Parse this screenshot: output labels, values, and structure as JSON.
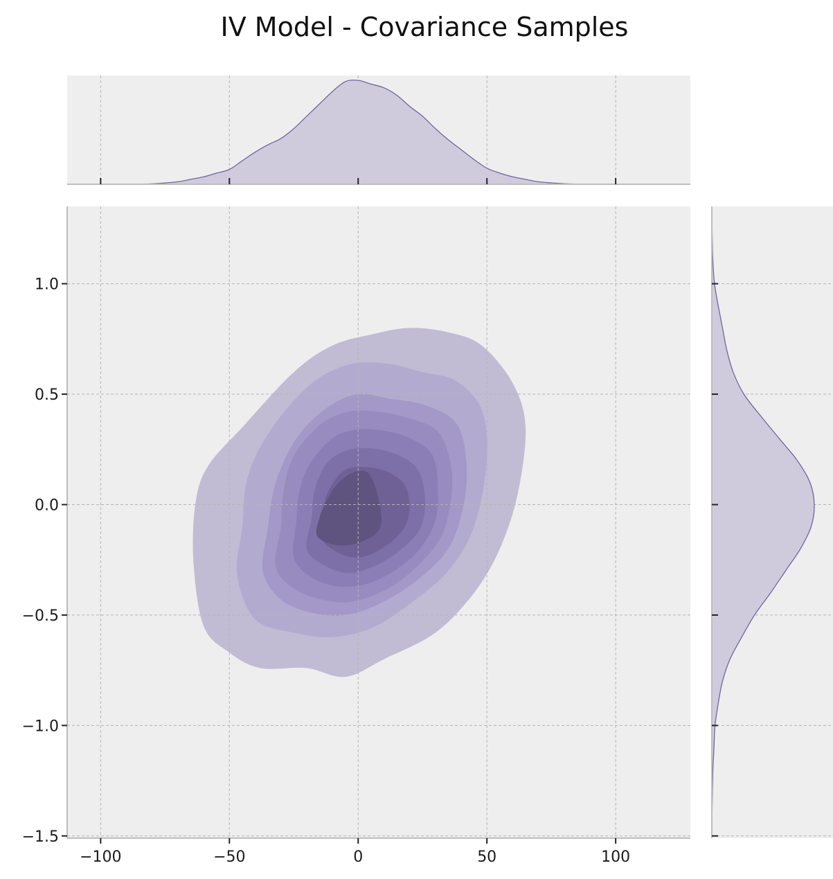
{
  "chart_data": {
    "type": "kde_joint",
    "title": "IV Model - Covariance Samples",
    "xlabel": "",
    "ylabel": "",
    "xlim": [
      -113,
      129
    ],
    "ylim": [
      -1.51,
      1.35
    ],
    "x_ticks": [
      -100,
      -50,
      0,
      50,
      100
    ],
    "x_tick_labels": [
      "−100",
      "−50",
      "0",
      "50",
      "100"
    ],
    "y_ticks": [
      -1.5,
      -1.0,
      -0.5,
      0.0,
      0.5,
      1.0
    ],
    "y_tick_labels": [
      "−1.5",
      "−1.0",
      "−0.5",
      "0.0",
      "0.5",
      "1.0"
    ],
    "grid": true,
    "colors": {
      "panel_bg": "#eeeeee",
      "grid": "#b4b4b4",
      "marginal_fill": "#d0cbdc",
      "marginal_line": "#7064a0",
      "levels": [
        "#c1bcd4",
        "#b3abcf",
        "#a398c8",
        "#978bc0",
        "#8b7eb7",
        "#7d6fa8",
        "#6f6196",
        "#5f5380"
      ]
    },
    "contours": [
      {
        "level": 1,
        "points": [
          [
            -63,
            0.02
          ],
          [
            -64,
            -0.25
          ],
          [
            -60,
            -0.55
          ],
          [
            -50,
            -0.67
          ],
          [
            -38,
            -0.74
          ],
          [
            -20,
            -0.74
          ],
          [
            -5,
            -0.78
          ],
          [
            10,
            -0.7
          ],
          [
            30,
            -0.58
          ],
          [
            45,
            -0.4
          ],
          [
            55,
            -0.2
          ],
          [
            62,
            0.05
          ],
          [
            65,
            0.35
          ],
          [
            60,
            0.55
          ],
          [
            48,
            0.72
          ],
          [
            35,
            0.78
          ],
          [
            20,
            0.8
          ],
          [
            5,
            0.77
          ],
          [
            -10,
            0.72
          ],
          [
            -25,
            0.6
          ],
          [
            -45,
            0.35
          ],
          [
            -58,
            0.18
          ]
        ]
      },
      {
        "level": 2,
        "points": [
          [
            -45,
            -0.1
          ],
          [
            -47,
            -0.32
          ],
          [
            -40,
            -0.52
          ],
          [
            -25,
            -0.58
          ],
          [
            -10,
            -0.6
          ],
          [
            5,
            -0.56
          ],
          [
            20,
            -0.45
          ],
          [
            35,
            -0.3
          ],
          [
            45,
            -0.1
          ],
          [
            50,
            0.2
          ],
          [
            48,
            0.43
          ],
          [
            38,
            0.56
          ],
          [
            25,
            0.6
          ],
          [
            10,
            0.64
          ],
          [
            -5,
            0.63
          ],
          [
            -20,
            0.53
          ],
          [
            -35,
            0.32
          ],
          [
            -43,
            0.12
          ]
        ]
      },
      {
        "level": 3,
        "points": [
          [
            -35,
            -0.1
          ],
          [
            -37,
            -0.3
          ],
          [
            -30,
            -0.43
          ],
          [
            -18,
            -0.49
          ],
          [
            -5,
            -0.5
          ],
          [
            8,
            -0.45
          ],
          [
            22,
            -0.35
          ],
          [
            35,
            -0.2
          ],
          [
            41,
            0.0
          ],
          [
            42,
            0.2
          ],
          [
            38,
            0.37
          ],
          [
            26,
            0.45
          ],
          [
            12,
            0.48
          ],
          [
            0,
            0.5
          ],
          [
            -12,
            0.44
          ],
          [
            -24,
            0.3
          ],
          [
            -32,
            0.1
          ]
        ]
      },
      {
        "level": 4,
        "points": [
          [
            -30,
            -0.1
          ],
          [
            -32,
            -0.28
          ],
          [
            -25,
            -0.38
          ],
          [
            -14,
            -0.43
          ],
          [
            -3,
            -0.44
          ],
          [
            10,
            -0.39
          ],
          [
            22,
            -0.29
          ],
          [
            32,
            -0.15
          ],
          [
            36,
            0.02
          ],
          [
            36,
            0.18
          ],
          [
            31,
            0.33
          ],
          [
            20,
            0.39
          ],
          [
            8,
            0.42
          ],
          [
            -4,
            0.42
          ],
          [
            -15,
            0.36
          ],
          [
            -25,
            0.22
          ],
          [
            -29,
            0.06
          ]
        ]
      },
      {
        "level": 5,
        "points": [
          [
            -24,
            -0.08
          ],
          [
            -25,
            -0.24
          ],
          [
            -18,
            -0.33
          ],
          [
            -8,
            -0.37
          ],
          [
            3,
            -0.36
          ],
          [
            14,
            -0.3
          ],
          [
            24,
            -0.2
          ],
          [
            30,
            -0.07
          ],
          [
            31,
            0.08
          ],
          [
            29,
            0.22
          ],
          [
            22,
            0.29
          ],
          [
            12,
            0.33
          ],
          [
            0,
            0.34
          ],
          [
            -10,
            0.3
          ],
          [
            -19,
            0.18
          ],
          [
            -23,
            0.05
          ]
        ]
      },
      {
        "level": 6,
        "points": [
          [
            -18,
            -0.06
          ],
          [
            -20,
            -0.2
          ],
          [
            -14,
            -0.27
          ],
          [
            -4,
            -0.31
          ],
          [
            6,
            -0.28
          ],
          [
            16,
            -0.21
          ],
          [
            24,
            -0.11
          ],
          [
            26,
            0.01
          ],
          [
            24,
            0.14
          ],
          [
            18,
            0.21
          ],
          [
            8,
            0.25
          ],
          [
            -3,
            0.25
          ],
          [
            -12,
            0.19
          ],
          [
            -17,
            0.06
          ]
        ]
      },
      {
        "level": 7,
        "points": [
          [
            -14,
            -0.05
          ],
          [
            -15,
            -0.14
          ],
          [
            -9,
            -0.21
          ],
          [
            0,
            -0.24
          ],
          [
            9,
            -0.2
          ],
          [
            17,
            -0.12
          ],
          [
            20,
            -0.02
          ],
          [
            18,
            0.09
          ],
          [
            11,
            0.15
          ],
          [
            2,
            0.17
          ],
          [
            -6,
            0.15
          ],
          [
            -12,
            0.05
          ]
        ]
      },
      {
        "level": 8,
        "points": [
          [
            -15,
            -0.06
          ],
          [
            -16,
            -0.14
          ],
          [
            -10,
            -0.18
          ],
          [
            -2,
            -0.18
          ],
          [
            6,
            -0.14
          ],
          [
            9,
            -0.08
          ],
          [
            8,
            0.02
          ],
          [
            6,
            0.1
          ],
          [
            3,
            0.15
          ],
          [
            -3,
            0.14
          ],
          [
            -9,
            0.08
          ],
          [
            -13,
            0.0
          ]
        ]
      }
    ],
    "marginal_x": {
      "x": [
        -110,
        -90,
        -80,
        -70,
        -65,
        -60,
        -55,
        -50,
        -45,
        -40,
        -35,
        -30,
        -25,
        -20,
        -15,
        -10,
        -5,
        0,
        5,
        10,
        15,
        20,
        25,
        30,
        35,
        40,
        45,
        50,
        55,
        60,
        65,
        70,
        80,
        90,
        100,
        110,
        120,
        128
      ],
      "density": [
        0,
        0.001,
        0.004,
        0.02,
        0.04,
        0.06,
        0.09,
        0.12,
        0.19,
        0.26,
        0.32,
        0.37,
        0.45,
        0.55,
        0.65,
        0.75,
        0.83,
        0.84,
        0.81,
        0.78,
        0.72,
        0.63,
        0.55,
        0.45,
        0.36,
        0.28,
        0.2,
        0.13,
        0.09,
        0.06,
        0.04,
        0.02,
        0.005,
        0.001,
        0,
        0,
        0,
        0
      ]
    },
    "marginal_y": {
      "y": [
        -1.5,
        -1.4,
        -1.3,
        -1.2,
        -1.1,
        -1.0,
        -0.9,
        -0.8,
        -0.7,
        -0.6,
        -0.5,
        -0.4,
        -0.3,
        -0.2,
        -0.1,
        0.0,
        0.1,
        0.2,
        0.3,
        0.4,
        0.5,
        0.6,
        0.7,
        0.8,
        0.9,
        1.0,
        1.1,
        1.2,
        1.3
      ],
      "density": [
        0,
        0.002,
        0.005,
        0.01,
        0.02,
        0.03,
        0.06,
        0.1,
        0.17,
        0.28,
        0.4,
        0.55,
        0.69,
        0.83,
        0.93,
        0.96,
        0.92,
        0.8,
        0.63,
        0.46,
        0.3,
        0.2,
        0.14,
        0.1,
        0.06,
        0.025,
        0.01,
        0.004,
        0.001
      ]
    }
  }
}
